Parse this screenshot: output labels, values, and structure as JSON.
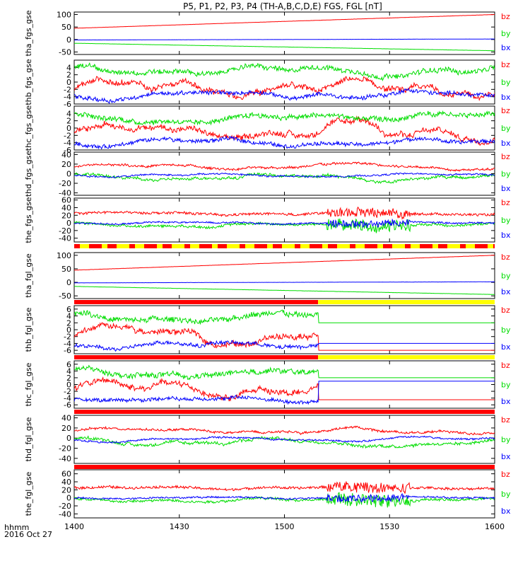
{
  "title": "P5, P1, P2, P3, P4 (TH-A,B,C,D,E) FGS, FGL [nT]",
  "x_axis": {
    "ticks": [
      "1400",
      "1430",
      "1500",
      "1530",
      "1600"
    ],
    "corner_label_1": "hhmm",
    "corner_label_2": "2016 Oct 27"
  },
  "colors": {
    "bz": "#ff0000",
    "by": "#00dd00",
    "bx": "#0000ff",
    "flag_yellow": "#ffff00",
    "flag_red": "#ff0000"
  },
  "chart_data": [
    {
      "type": "line",
      "ylabel": "tha_fgs_gse",
      "ylim": [
        -60,
        110
      ],
      "yticks": [
        "100",
        "50",
        "0",
        "-50"
      ],
      "ytick_values": [
        100,
        50,
        0,
        -50
      ],
      "legend": [
        "bz",
        "by",
        "bx"
      ],
      "x_range_hhmm": [
        "1400",
        "1600"
      ],
      "series": [
        {
          "name": "bz",
          "start": 45,
          "end": 100,
          "noise": 0.6,
          "kind": "trend"
        },
        {
          "name": "by",
          "start": -15,
          "end": -45,
          "noise": 0.6,
          "kind": "trend"
        },
        {
          "name": "bx",
          "start": -2,
          "end": 2,
          "noise": 0.5,
          "kind": "trend"
        }
      ]
    },
    {
      "type": "line",
      "ylabel": "thb_fgs_gse",
      "ylim": [
        -6,
        6
      ],
      "yticks": [
        "4",
        "2",
        "0",
        "-2",
        "-4",
        "-6"
      ],
      "ytick_values": [
        4,
        2,
        0,
        -2,
        -4,
        -6
      ],
      "legend": [
        "bz",
        "by",
        "bx"
      ],
      "series": [
        {
          "name": "bz",
          "center": -2,
          "amplitude": 2.5,
          "noise": 0.6,
          "kind": "turbulent"
        },
        {
          "name": "by",
          "center": 3,
          "amplitude": 1.5,
          "noise": 0.6,
          "kind": "turbulent"
        },
        {
          "name": "bx",
          "center": -3.5,
          "amplitude": 1.2,
          "noise": 0.5,
          "kind": "turbulent"
        }
      ]
    },
    {
      "type": "line",
      "ylabel": "thc_fgs_gse",
      "ylim": [
        -6,
        6
      ],
      "yticks": [
        "4",
        "2",
        "0",
        "-2",
        "-4",
        "-6"
      ],
      "ytick_values": [
        4,
        2,
        0,
        -2,
        -4,
        -6
      ],
      "legend": [
        "bz",
        "by",
        "bx"
      ],
      "series": [
        {
          "name": "bz",
          "center": -1,
          "amplitude": 2.5,
          "noise": 0.6,
          "kind": "turbulent"
        },
        {
          "name": "by",
          "center": 3,
          "amplitude": 1.5,
          "noise": 0.6,
          "kind": "turbulent"
        },
        {
          "name": "bx",
          "center": -4,
          "amplitude": 1.0,
          "noise": 0.5,
          "kind": "turbulent"
        }
      ]
    },
    {
      "type": "line",
      "ylabel": "thd_fgs_gse",
      "ylim": [
        -45,
        45
      ],
      "yticks": [
        "40",
        "20",
        "0",
        "-20",
        "-40"
      ],
      "ytick_values": [
        40,
        20,
        0,
        -20,
        -40
      ],
      "legend": [
        "bz",
        "by",
        "bx"
      ],
      "series": [
        {
          "name": "bz",
          "center": 15,
          "amplitude": 6,
          "noise": 2.0,
          "kind": "turbulent"
        },
        {
          "name": "by",
          "center": -8,
          "amplitude": 8,
          "noise": 2.5,
          "kind": "turbulent"
        },
        {
          "name": "bx",
          "center": -3,
          "amplitude": 4,
          "noise": 1.5,
          "kind": "turbulent"
        }
      ]
    },
    {
      "type": "line",
      "ylabel": "the_fgs_gse",
      "ylim": [
        -50,
        65
      ],
      "yticks": [
        "60",
        "40",
        "20",
        "0",
        "-20",
        "-40"
      ],
      "ytick_values": [
        60,
        40,
        20,
        0,
        -20,
        -40
      ],
      "legend": [
        "bz",
        "by",
        "bx"
      ],
      "series": [
        {
          "name": "bz",
          "center": 25,
          "amplitude": 4,
          "noise": 3.0,
          "kind": "spiky"
        },
        {
          "name": "by",
          "center": -5,
          "amplitude": 5,
          "noise": 3.0,
          "kind": "spiky"
        },
        {
          "name": "bx",
          "center": 0,
          "amplitude": 3,
          "noise": 2.0,
          "kind": "spiky"
        }
      ]
    },
    {
      "type": "line",
      "ylabel": "tha_fgl_gse",
      "ylim": [
        -60,
        110
      ],
      "yticks": [
        "100",
        "50",
        "0",
        "-50"
      ],
      "ytick_values": [
        100,
        50,
        0,
        -50
      ],
      "legend": [
        "bz",
        "by",
        "bx"
      ],
      "series": [
        {
          "name": "bz",
          "start": 45,
          "end": 100,
          "noise": 0.6,
          "kind": "trend"
        },
        {
          "name": "by",
          "start": -15,
          "end": -45,
          "noise": 0.6,
          "kind": "trend"
        },
        {
          "name": "bx",
          "start": -2,
          "end": 2,
          "noise": 0.5,
          "kind": "trend"
        }
      ]
    },
    {
      "type": "line",
      "ylabel": "thb_fgl_gse",
      "ylim": [
        -7,
        7
      ],
      "yticks": [
        "6",
        "4",
        "2",
        "0",
        "-2",
        "-4",
        "-6"
      ],
      "ytick_values": [
        6,
        4,
        2,
        0,
        -2,
        -4,
        -6
      ],
      "legend": [
        "bz",
        "by",
        "bx"
      ],
      "data_end_fraction": 0.58,
      "series": [
        {
          "name": "bz",
          "center": -2,
          "amplitude": 2.5,
          "noise": 0.7,
          "kind": "turbulent",
          "flat_after": -6
        },
        {
          "name": "by",
          "center": 3.5,
          "amplitude": 1.5,
          "noise": 0.7,
          "kind": "turbulent",
          "flat_after": 2
        },
        {
          "name": "bx",
          "center": -4.5,
          "amplitude": 1.0,
          "noise": 0.5,
          "kind": "turbulent",
          "flat_after": -4
        }
      ]
    },
    {
      "type": "line",
      "ylabel": "thc_fgl_gse",
      "ylim": [
        -7,
        7
      ],
      "yticks": [
        "6",
        "4",
        "2",
        "0",
        "-2",
        "-4",
        "-6"
      ],
      "ytick_values": [
        6,
        4,
        2,
        0,
        -2,
        -4,
        -6
      ],
      "legend": [
        "bz",
        "by",
        "bx"
      ],
      "data_end_fraction": 0.58,
      "series": [
        {
          "name": "bz",
          "center": -1,
          "amplitude": 2.5,
          "noise": 0.7,
          "kind": "turbulent",
          "flat_after": -4.5
        },
        {
          "name": "by",
          "center": 3.5,
          "amplitude": 1.5,
          "noise": 0.7,
          "kind": "turbulent",
          "flat_after": 2
        },
        {
          "name": "bx",
          "center": -4.5,
          "amplitude": 1.0,
          "noise": 0.5,
          "kind": "turbulent",
          "flat_after": 1
        }
      ]
    },
    {
      "type": "line",
      "ylabel": "thd_fgl_gse",
      "ylim": [
        -50,
        45
      ],
      "yticks": [
        "40",
        "20",
        "0",
        "-20",
        "-40"
      ],
      "ytick_values": [
        40,
        20,
        0,
        -20,
        -40
      ],
      "legend": [
        "bz",
        "by",
        "bx"
      ],
      "series": [
        {
          "name": "bz",
          "center": 15,
          "amplitude": 6,
          "noise": 2.0,
          "kind": "turbulent"
        },
        {
          "name": "by",
          "center": -8,
          "amplitude": 8,
          "noise": 2.5,
          "kind": "turbulent"
        },
        {
          "name": "bx",
          "center": -3,
          "amplitude": 4,
          "noise": 1.5,
          "kind": "turbulent"
        }
      ]
    },
    {
      "type": "line",
      "ylabel": "the_fgl_gse",
      "ylim": [
        -50,
        70
      ],
      "yticks": [
        "60",
        "40",
        "20",
        "0",
        "-20",
        "-40"
      ],
      "ytick_values": [
        60,
        40,
        20,
        0,
        -20,
        -40
      ],
      "legend": [
        "bz",
        "by",
        "bx"
      ],
      "series": [
        {
          "name": "bz",
          "center": 25,
          "amplitude": 4,
          "noise": 3.0,
          "kind": "spiky"
        },
        {
          "name": "by",
          "center": -5,
          "amplitude": 5,
          "noise": 3.0,
          "kind": "spiky"
        },
        {
          "name": "bx",
          "center": 0,
          "amplitude": 3,
          "noise": 2.0,
          "kind": "spiky"
        }
      ]
    }
  ],
  "flag_bars": [
    {
      "after_panel": 4,
      "pattern": "striped"
    },
    {
      "after_panel": 5,
      "pattern": "red_then_yellow",
      "split_fraction": 0.58
    },
    {
      "after_panel": 6,
      "pattern": "red_then_yellow",
      "split_fraction": 0.58
    },
    {
      "after_panel": 7,
      "pattern": "solid_red"
    },
    {
      "after_panel": 8,
      "pattern": "solid_red"
    }
  ]
}
